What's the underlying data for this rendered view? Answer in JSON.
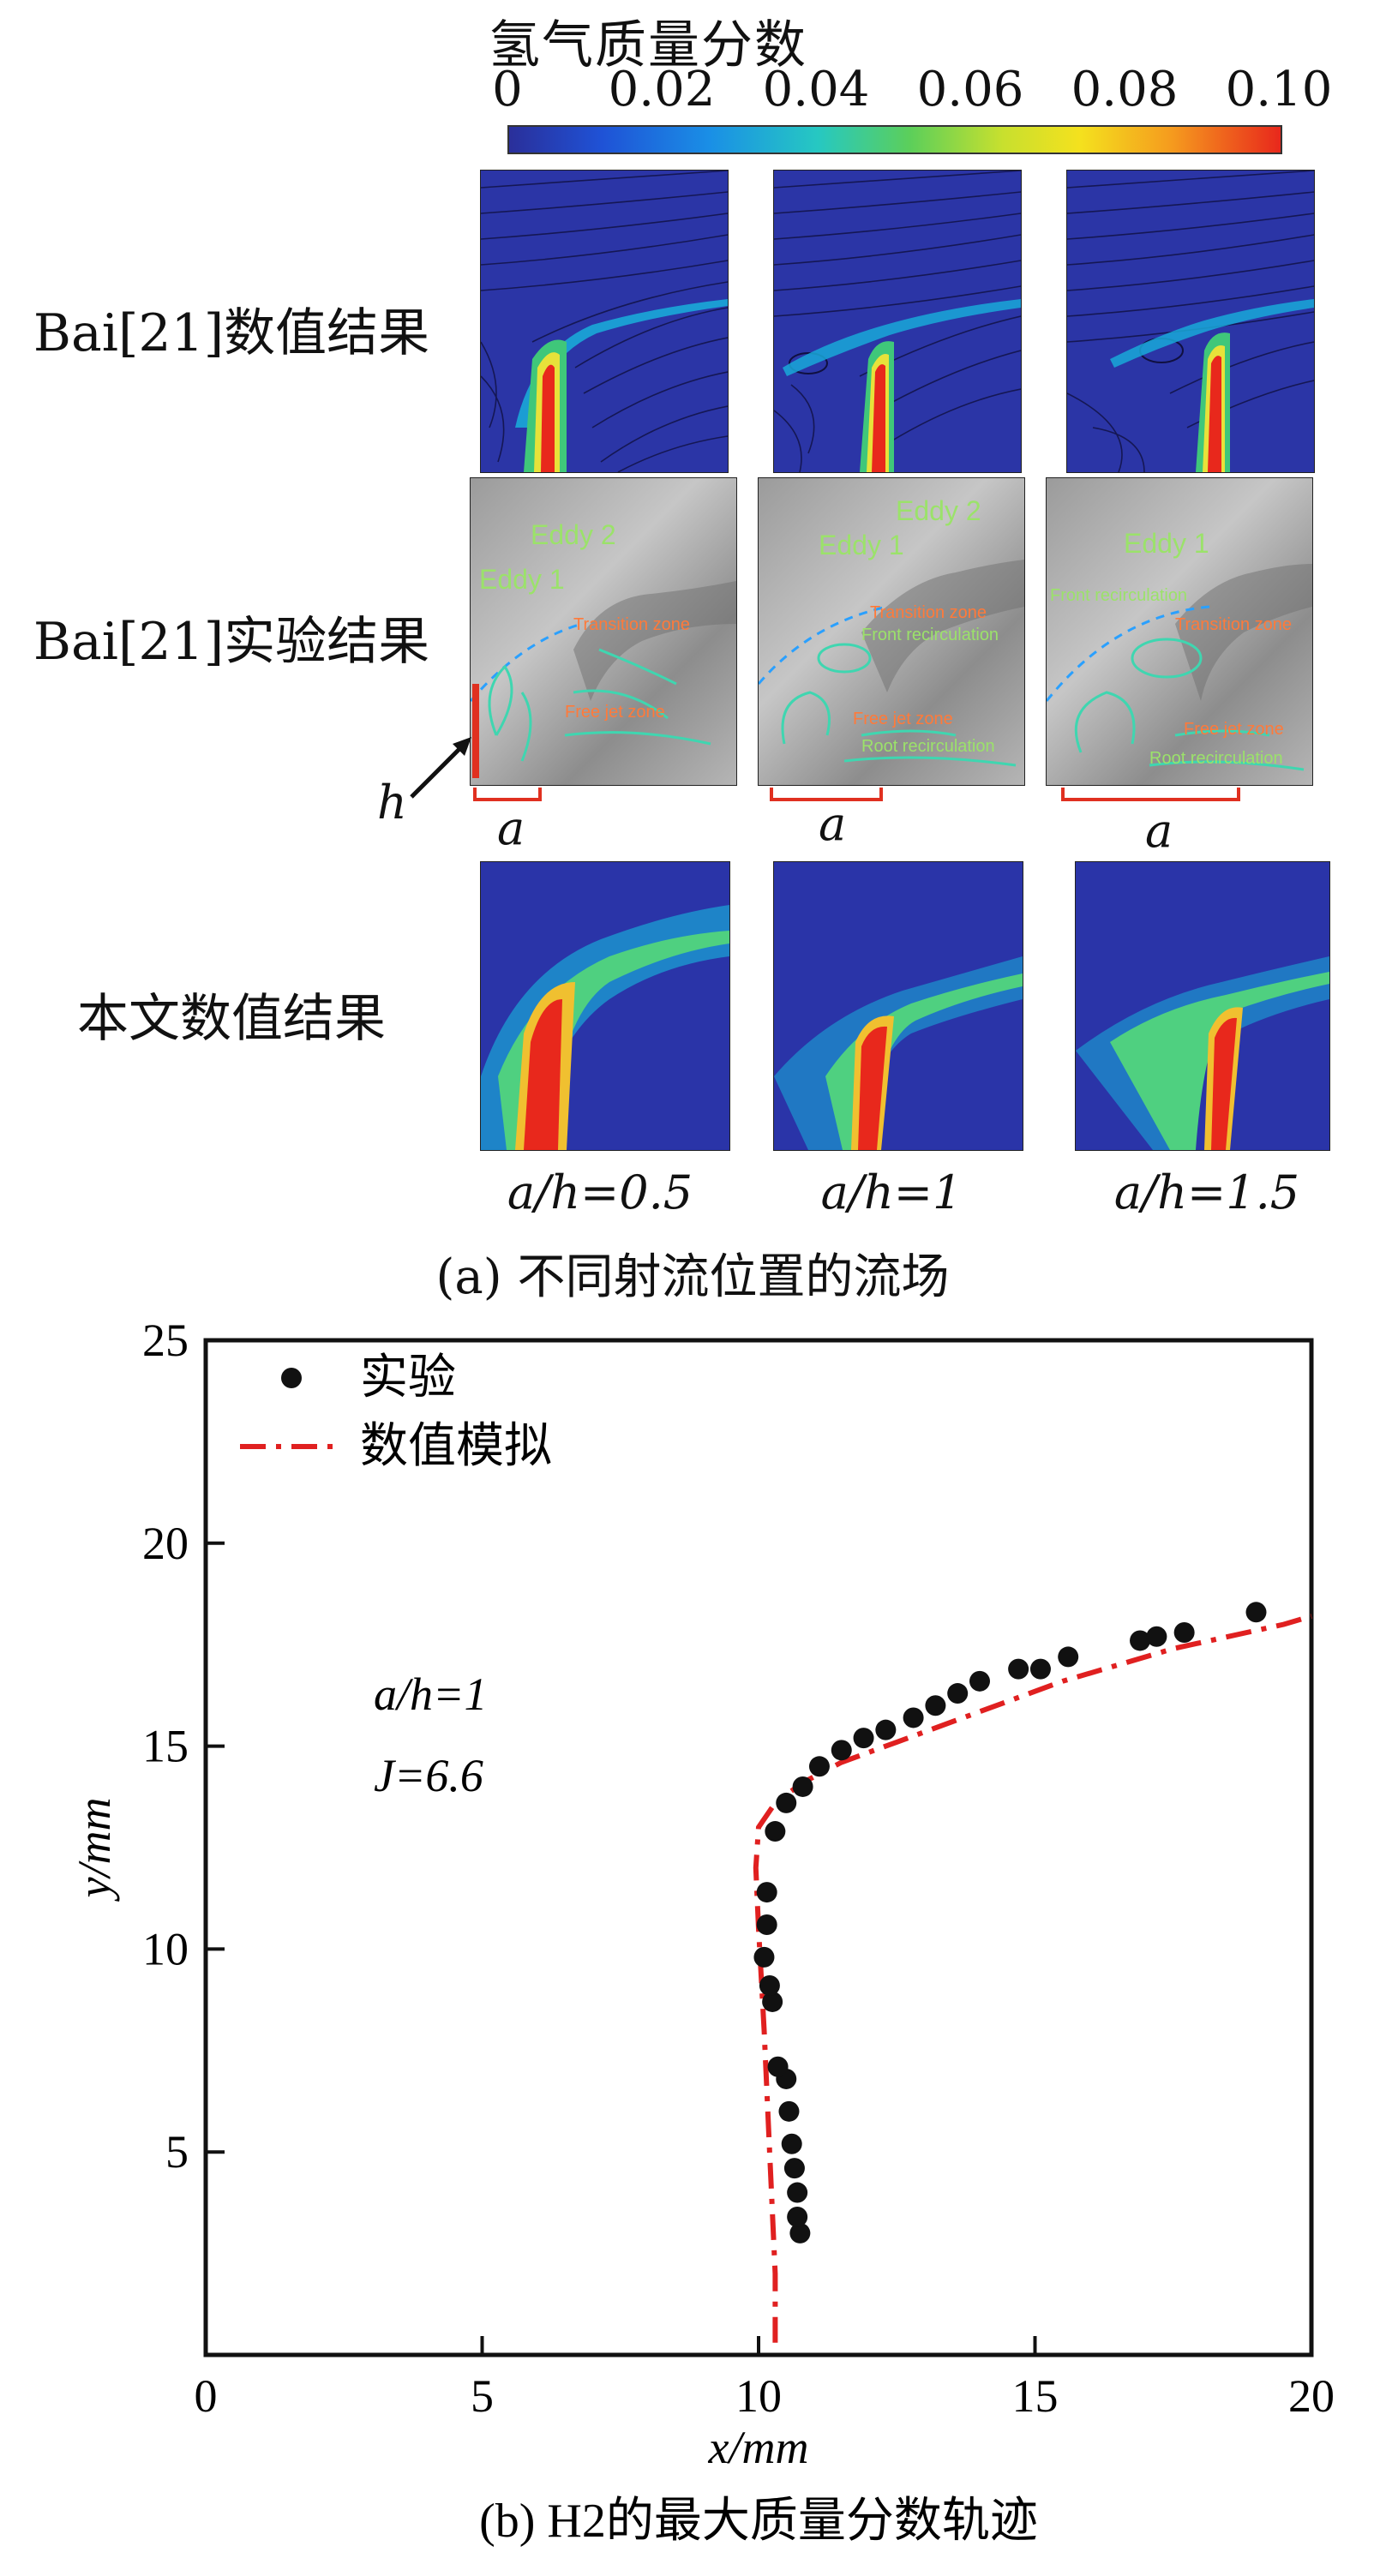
{
  "colorbar": {
    "title": "氢气质量分数",
    "ticks": [
      "0",
      "0.02",
      "0.04",
      "0.06",
      "0.08",
      "0.10"
    ]
  },
  "rows": {
    "row1": "Bai[21]数值结果",
    "row2": "Bai[21]实验结果",
    "row3": "本文数值结果"
  },
  "annotations": {
    "eddy1": "Eddy 1",
    "eddy2": "Eddy 2",
    "transition": "Transition zone",
    "front": "Front recirculation",
    "free_jet": "Free jet zone",
    "root": "Root recirculation",
    "h": "h",
    "a": "a"
  },
  "ratios": [
    "a/h=0.5",
    "a/h=1",
    "a/h=1.5"
  ],
  "caption_a": "(a) 不同射流位置的流场",
  "chart_data": {
    "type": "scatter",
    "title": "(b) H2的最大质量分数轨迹",
    "xlabel": "x/mm",
    "ylabel": "y/mm",
    "xlim": [
      0,
      20
    ],
    "ylim": [
      0,
      25
    ],
    "xticks": [
      "0",
      "5",
      "10",
      "15",
      "20"
    ],
    "yticks": [
      "5",
      "10",
      "15",
      "20",
      "25"
    ],
    "legend": [
      "实验",
      "数值模拟"
    ],
    "annotations": [
      "a/h=1",
      "J=6.6"
    ],
    "series": [
      {
        "name": "实验",
        "marker": "circle",
        "color": "#111111",
        "x": [
          10.75,
          10.7,
          10.7,
          10.65,
          10.6,
          10.55,
          10.5,
          10.35,
          10.25,
          10.2,
          10.1,
          10.15,
          10.15,
          10.3,
          10.5,
          10.8,
          11.1,
          11.5,
          11.9,
          12.3,
          12.8,
          13.2,
          13.6,
          14.0,
          14.7,
          15.1,
          15.6,
          16.9,
          17.2,
          17.7,
          19.0
        ],
        "y": [
          3.0,
          3.4,
          4.0,
          4.6,
          5.2,
          6.0,
          6.8,
          7.1,
          8.7,
          9.1,
          9.8,
          10.6,
          11.4,
          12.9,
          13.6,
          14.0,
          14.5,
          14.9,
          15.2,
          15.4,
          15.7,
          16.0,
          16.3,
          16.6,
          16.9,
          16.9,
          17.2,
          17.6,
          17.7,
          17.8,
          18.3
        ]
      },
      {
        "name": "数值模拟",
        "style": "dash-dot",
        "color": "#e02020",
        "x": [
          10.3,
          10.3,
          10.2,
          10.1,
          10.0,
          9.95,
          10.0,
          10.3,
          10.8,
          11.5,
          12.5,
          13.5,
          14.5,
          15.5,
          16.5,
          17.5,
          18.5,
          19.5,
          20.0
        ],
        "y": [
          0.3,
          2.0,
          5.0,
          8.0,
          10.5,
          12.0,
          13.0,
          13.6,
          14.1,
          14.6,
          15.1,
          15.6,
          16.1,
          16.6,
          17.0,
          17.4,
          17.7,
          18.0,
          18.2
        ]
      }
    ]
  }
}
